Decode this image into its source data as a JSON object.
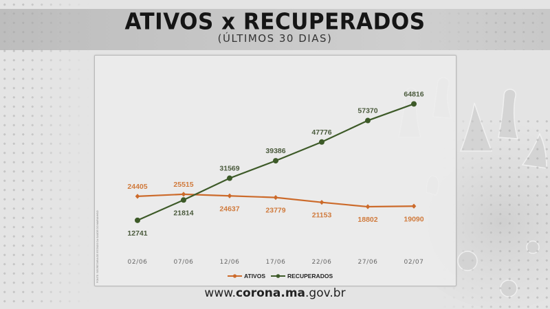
{
  "header": {
    "title": "ATIVOS x RECUPERADOS",
    "subtitle": "(ÚLTIMOS 30 DIAS)"
  },
  "source_note": "FONTE: SECRETARIA DE ESTADO DA SAÚDE DO MARANHÃO",
  "footer": {
    "url_prefix": "www.",
    "url_bold": "corona.ma",
    "url_suffix": ".gov.br"
  },
  "colors": {
    "ativos": "#cc6a2a",
    "ativos_label": "#d07a3c",
    "recuperados": "#3d5a28",
    "recuperados_label": "#4a5a3c",
    "background": "#e4e4e4",
    "panel": "#ececec"
  },
  "legend": {
    "ativos": "ATIVOS",
    "recuperados": "RECUPERADOS"
  },
  "chart_data": {
    "type": "line",
    "title": "ATIVOS x RECUPERADOS",
    "subtitle": "(ÚLTIMOS 30 DIAS)",
    "xlabel": "",
    "ylabel": "",
    "categories": [
      "02/06",
      "07/06",
      "12/06",
      "17/06",
      "22/06",
      "27/06",
      "02/07"
    ],
    "series": [
      {
        "name": "ATIVOS",
        "color": "#cc6a2a",
        "marker": "diamond",
        "values": [
          24405,
          25515,
          24637,
          23779,
          21153,
          18802,
          19090
        ]
      },
      {
        "name": "RECUPERADOS",
        "color": "#3d5a28",
        "marker": "circle",
        "values": [
          12741,
          21814,
          31569,
          39386,
          47776,
          57370,
          64816
        ]
      }
    ],
    "data_labels": true,
    "grid": false,
    "y_axis_visible": false,
    "legend_position": "bottom-center"
  }
}
